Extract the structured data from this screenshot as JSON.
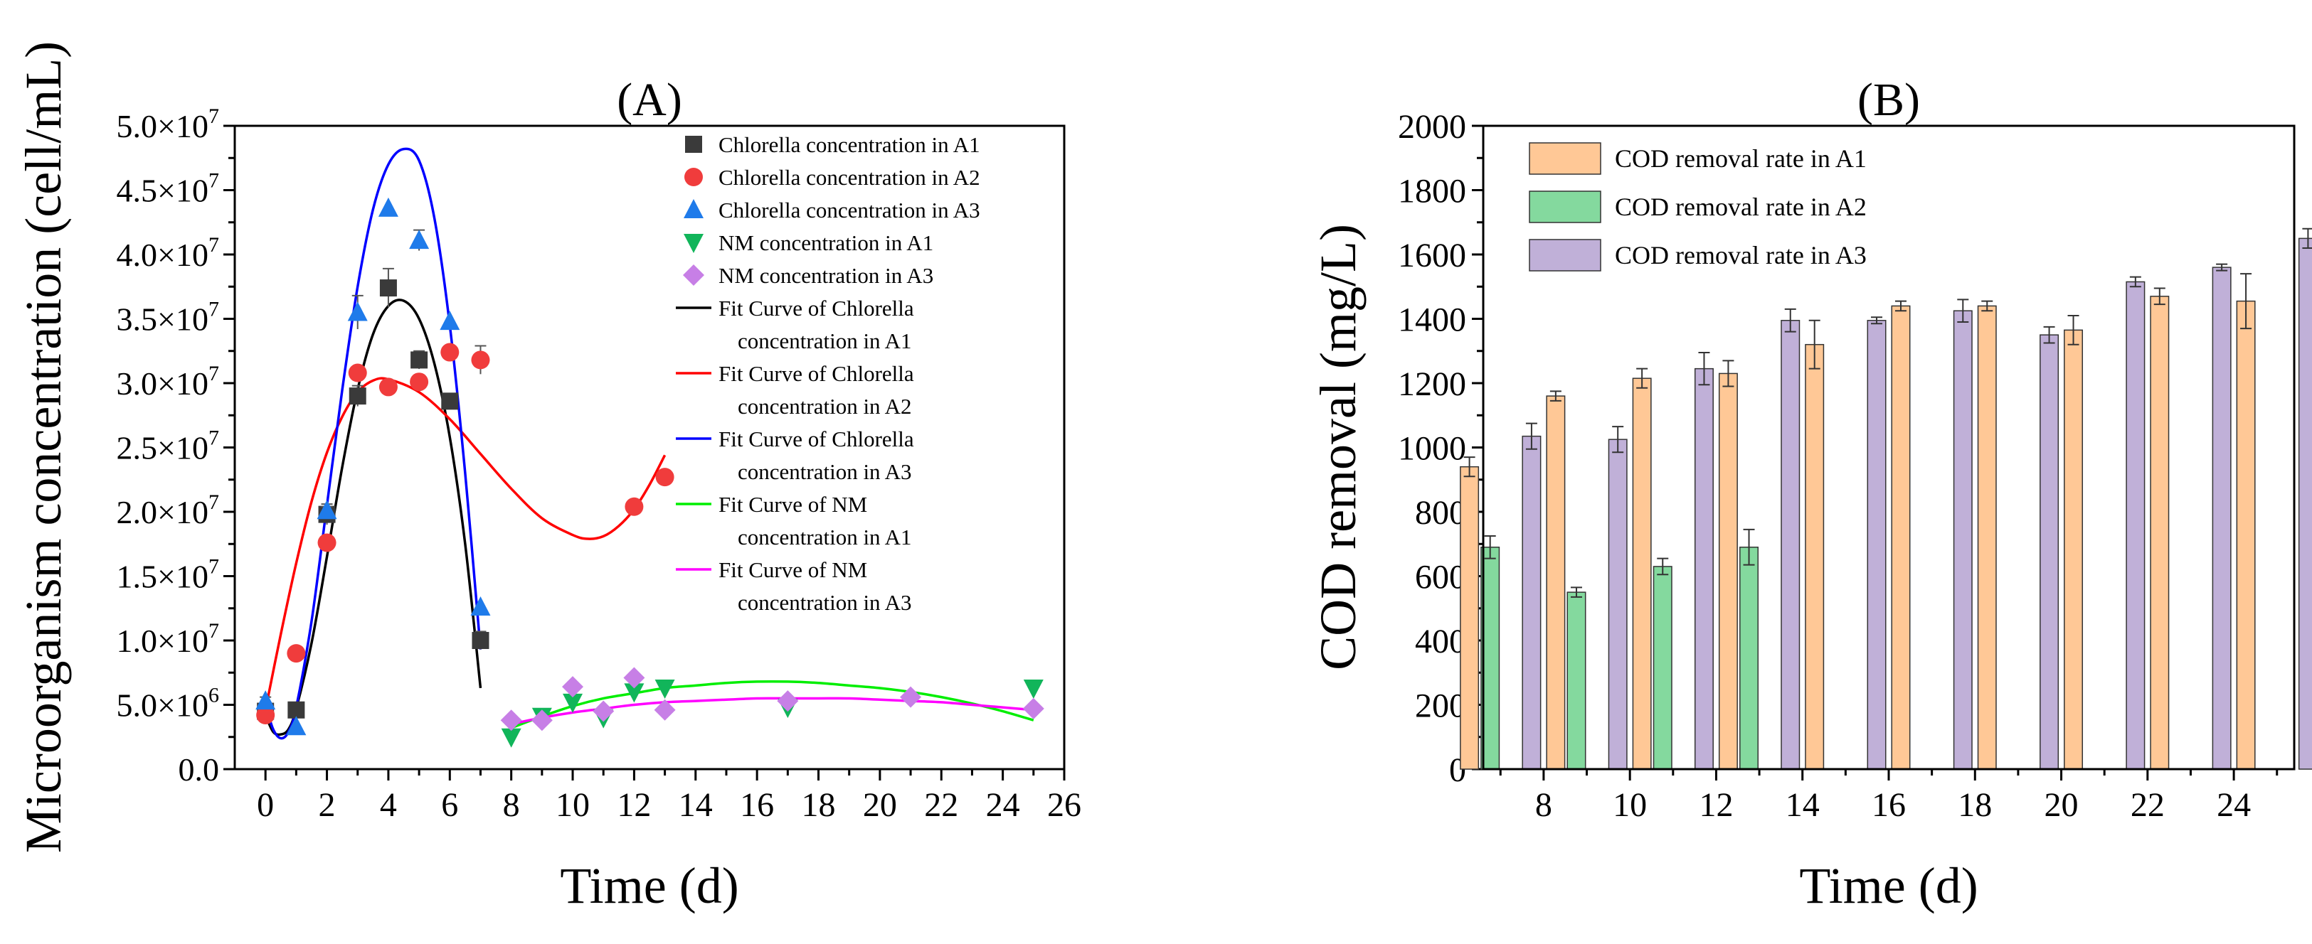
{
  "chart_data": [
    {
      "type": "scatter",
      "panel_label": "(A)",
      "xlabel": "Time (d)",
      "ylabel": "Microorganism concentration (cell/mL)",
      "xlim": [
        -1,
        26
      ],
      "ylim": [
        0,
        50000000
      ],
      "x_ticks": [
        0,
        2,
        4,
        6,
        8,
        10,
        12,
        14,
        16,
        18,
        20,
        22,
        24,
        26
      ],
      "y_ticks": [
        {
          "value": 0,
          "mantissa": "0.0",
          "exp": ""
        },
        {
          "value": 5000000,
          "mantissa": "5.0×10",
          "exp": "6"
        },
        {
          "value": 10000000,
          "mantissa": "1.0×10",
          "exp": "7"
        },
        {
          "value": 15000000,
          "mantissa": "1.5×10",
          "exp": "7"
        },
        {
          "value": 20000000,
          "mantissa": "2.0×10",
          "exp": "7"
        },
        {
          "value": 25000000,
          "mantissa": "2.5×10",
          "exp": "7"
        },
        {
          "value": 30000000,
          "mantissa": "3.0×10",
          "exp": "7"
        },
        {
          "value": 35000000,
          "mantissa": "3.5×10",
          "exp": "7"
        },
        {
          "value": 40000000,
          "mantissa": "4.0×10",
          "exp": "7"
        },
        {
          "value": 45000000,
          "mantissa": "4.5×10",
          "exp": "7"
        },
        {
          "value": 50000000,
          "mantissa": "5.0×10",
          "exp": "7"
        }
      ],
      "legend_position": "top-right",
      "series": [
        {
          "name": "Chlorella concentration in A1",
          "marker": "square",
          "color": "#3a3a3a",
          "x": [
            0,
            1,
            2,
            3,
            4,
            5,
            6,
            7
          ],
          "y": [
            4500000,
            4600000,
            19800000,
            29000000,
            37400000,
            31800000,
            28600000,
            10000000
          ],
          "err": [
            300000,
            300000,
            800000,
            800000,
            1500000,
            700000,
            600000,
            700000
          ]
        },
        {
          "name": "Chlorella concentration in A2",
          "marker": "circle",
          "color": "#f03c3c",
          "x": [
            0,
            1,
            2,
            3,
            4,
            5,
            6,
            7,
            12,
            13
          ],
          "y": [
            4200000,
            9000000,
            17600000,
            30800000,
            29700000,
            30100000,
            32400000,
            31800000,
            20400000,
            22700000
          ],
          "err": [
            0,
            0,
            0,
            0,
            0,
            0,
            0,
            1100000,
            0,
            0
          ]
        },
        {
          "name": "Chlorella concentration in A3",
          "marker": "triangle-up",
          "color": "#1f7bea",
          "x": [
            0,
            1,
            2,
            3,
            4,
            5,
            6,
            7
          ],
          "y": [
            5300000,
            3300000,
            20100000,
            35500000,
            43600000,
            41100000,
            34800000,
            12600000
          ],
          "err": [
            300000,
            0,
            300000,
            1300000,
            0,
            800000,
            0,
            0
          ]
        },
        {
          "name": "NM concentration in A1",
          "marker": "triangle-down",
          "color": "#11b55a",
          "x": [
            8,
            9,
            10,
            11,
            12,
            13,
            17,
            25
          ],
          "y": [
            2500000,
            4100000,
            5200000,
            4000000,
            6000000,
            6300000,
            4800000,
            6300000
          ],
          "err": [
            0,
            0,
            0,
            0,
            0,
            0,
            0,
            0
          ]
        },
        {
          "name": "NM concentration in A3",
          "marker": "diamond",
          "color": "#c77fe6",
          "x": [
            8,
            9,
            10,
            11,
            12,
            13,
            17,
            21,
            25
          ],
          "y": [
            3800000,
            3800000,
            6400000,
            4500000,
            7100000,
            4600000,
            5300000,
            5600000,
            4700000
          ],
          "err": [
            0,
            0,
            0,
            0,
            0,
            0,
            0,
            0,
            0
          ]
        }
      ],
      "fits": [
        {
          "name_line1": "Fit Curve of Chlorella",
          "name_line2": "concentration in A1",
          "color": "#000000",
          "x": [
            0,
            0.25,
            0.5,
            0.75,
            1,
            1.5,
            2,
            2.5,
            3,
            3.5,
            4,
            4.5,
            5,
            5.5,
            6,
            6.5,
            7
          ],
          "y": [
            4200000,
            2900000,
            2700000,
            3100000,
            4700000,
            9800000,
            16500000,
            23500000,
            29500000,
            33800000,
            36000000,
            36400000,
            35000000,
            31500000,
            25800000,
            17500000,
            6300000
          ]
        },
        {
          "name_line1": "Fit Curve of Chlorella",
          "name_line2": "concentration in A2",
          "color": "#ff0000",
          "x": [
            0,
            0.5,
            1,
            1.5,
            2,
            2.5,
            3,
            3.5,
            4,
            5,
            6,
            7,
            8,
            9,
            10,
            10.5,
            11,
            11.5,
            12,
            12.5,
            13
          ],
          "y": [
            4600000,
            10500000,
            16000000,
            20800000,
            24600000,
            27400000,
            29300000,
            30200000,
            30300000,
            29300000,
            27200000,
            24500000,
            21800000,
            19500000,
            18200000,
            17900000,
            18100000,
            18900000,
            20200000,
            22100000,
            24400000
          ]
        },
        {
          "name_line1": "Fit Curve of Chlorella",
          "name_line2": "concentration in A3",
          "color": "#0000ff",
          "x": [
            0,
            0.25,
            0.5,
            0.75,
            1,
            1.5,
            2,
            2.5,
            3,
            3.5,
            4,
            4.5,
            5,
            5.5,
            6,
            6.5,
            7
          ],
          "y": [
            5000000,
            3100000,
            2400000,
            2900000,
            4800000,
            11500000,
            20500000,
            29500000,
            37500000,
            43500000,
            47000000,
            48200000,
            47300000,
            42800000,
            34500000,
            23000000,
            9300000
          ]
        },
        {
          "name_line1": "Fit Curve of NM",
          "name_line2": "concentration in A1",
          "color": "#00ee00",
          "x": [
            8,
            9,
            10,
            11,
            12,
            13,
            14,
            15,
            16,
            17,
            18,
            19,
            20,
            21,
            22,
            23,
            24,
            25
          ],
          "y": [
            3200000,
            4100000,
            4900000,
            5500000,
            5900000,
            6300000,
            6500000,
            6700000,
            6800000,
            6800000,
            6700000,
            6500000,
            6300000,
            6000000,
            5600000,
            5100000,
            4500000,
            3800000
          ]
        },
        {
          "name_line1": "Fit Curve of NM",
          "name_line2": "concentration in A3",
          "color": "#ff00ff",
          "x": [
            8,
            9,
            10,
            11,
            12,
            13,
            14,
            15,
            16,
            17,
            18,
            19,
            20,
            21,
            22,
            23,
            24,
            25
          ],
          "y": [
            3500000,
            4000000,
            4400000,
            4700000,
            5000000,
            5200000,
            5300000,
            5400000,
            5500000,
            5500000,
            5500000,
            5500000,
            5400000,
            5300000,
            5200000,
            5000000,
            4800000,
            4600000
          ]
        }
      ]
    },
    {
      "type": "bar",
      "panel_label": "(B)",
      "xlabel": "Time (d)",
      "ylabel": "COD removal (mg/L)",
      "ylim": [
        0,
        2000
      ],
      "xlim": [
        6.6,
        25.4
      ],
      "y_ticks": [
        0,
        200,
        400,
        600,
        800,
        1000,
        1200,
        1400,
        1600,
        1800,
        2000
      ],
      "x_ticks": [
        8,
        10,
        12,
        14,
        16,
        18,
        20,
        22,
        24
      ],
      "legend_position": "top-left",
      "x": [
        7,
        9,
        11,
        13,
        15,
        17,
        19,
        21,
        23,
        25
      ],
      "series": [
        {
          "name": "COD removal rate in A1",
          "color": "#ffc896",
          "values": [
            940,
            1160,
            1215,
            1230,
            1320,
            1440,
            1440,
            1365,
            1470,
            1455
          ],
          "err": [
            30,
            15,
            30,
            40,
            75,
            15,
            15,
            45,
            25,
            85
          ]
        },
        {
          "name": "COD removal rate in A2",
          "color": "#84d99e",
          "values": [
            690,
            550,
            630,
            690,
            null,
            null,
            null,
            null,
            null,
            null
          ],
          "err": [
            35,
            15,
            25,
            55,
            0,
            0,
            0,
            0,
            0,
            0
          ]
        },
        {
          "name": "COD removal rate in A3",
          "color": "#c0b0d8",
          "values": [
            1035,
            1025,
            1245,
            1395,
            1395,
            1425,
            1350,
            1515,
            1560,
            1650
          ],
          "err": [
            40,
            40,
            50,
            35,
            10,
            35,
            25,
            15,
            10,
            30
          ]
        }
      ]
    }
  ]
}
